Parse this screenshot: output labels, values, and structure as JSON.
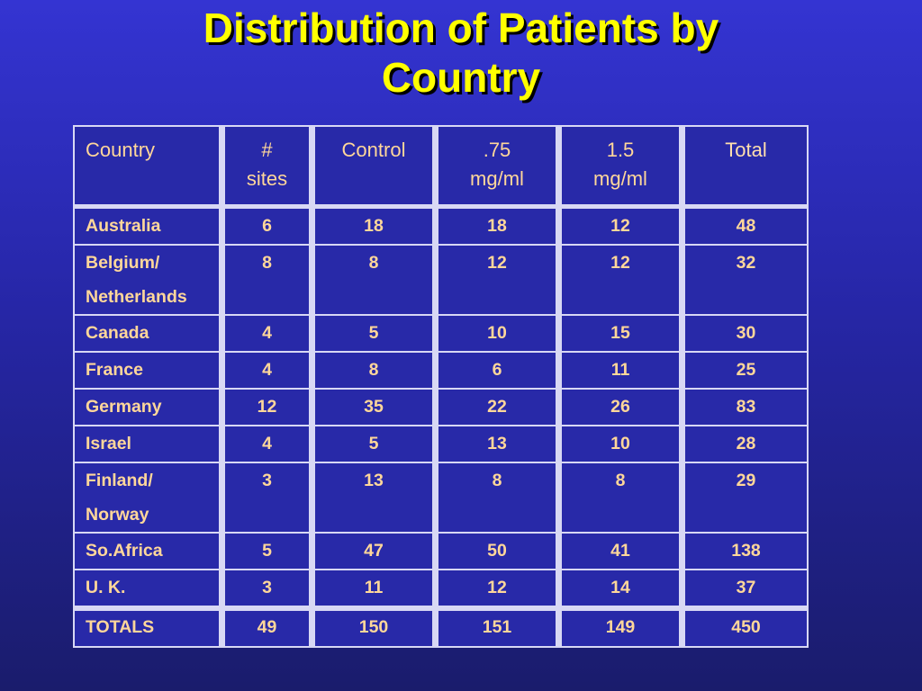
{
  "title_line1": "Distribution of Patients by",
  "title_line2": "Country",
  "table": {
    "headers": [
      "Country",
      "# sites",
      "Control",
      ".75 mg/ml",
      "1.5 mg/ml",
      "Total"
    ],
    "header_lines": [
      [
        "Country"
      ],
      [
        "#",
        "sites"
      ],
      [
        "Control"
      ],
      [
        ".75",
        "mg/ml"
      ],
      [
        "1.5",
        "mg/ml"
      ],
      [
        "Total"
      ]
    ],
    "rows": [
      {
        "country": [
          "Australia"
        ],
        "sites": "6",
        "control": "18",
        "d075": "18",
        "d15": "12",
        "total": "48"
      },
      {
        "country": [
          "Belgium/",
          "Netherlands"
        ],
        "sites": "8",
        "control": "8",
        "d075": "12",
        "d15": "12",
        "total": "32"
      },
      {
        "country": [
          "Canada"
        ],
        "sites": "4",
        "control": "5",
        "d075": "10",
        "d15": "15",
        "total": "30"
      },
      {
        "country": [
          "France"
        ],
        "sites": "4",
        "control": "8",
        "d075": "6",
        "d15": "11",
        "total": "25"
      },
      {
        "country": [
          "Germany"
        ],
        "sites": "12",
        "control": "35",
        "d075": "22",
        "d15": "26",
        "total": "83"
      },
      {
        "country": [
          "Israel"
        ],
        "sites": "4",
        "control": "5",
        "d075": "13",
        "d15": "10",
        "total": "28"
      },
      {
        "country": [
          "Finland/",
          "Norway"
        ],
        "sites": "3",
        "control": "13",
        "d075": "8",
        "d15": "8",
        "total": "29"
      },
      {
        "country": [
          "So.Africa"
        ],
        "sites": "5",
        "control": "47",
        "d075": "50",
        "d15": "41",
        "total": "138"
      },
      {
        "country": [
          "U. K."
        ],
        "sites": "3",
        "control": "11",
        "d075": "12",
        "d15": "14",
        "total": "37"
      }
    ],
    "totals": {
      "label": "TOTALS",
      "sites": "49",
      "control": "150",
      "d075": "151",
      "d15": "149",
      "total": "450"
    }
  },
  "colors": {
    "background_top": "#3434d2",
    "background_bottom": "#1a1c6c",
    "title": "#ffff00",
    "cell_text": "#ffd79a",
    "grid": "#d8d8f4"
  }
}
